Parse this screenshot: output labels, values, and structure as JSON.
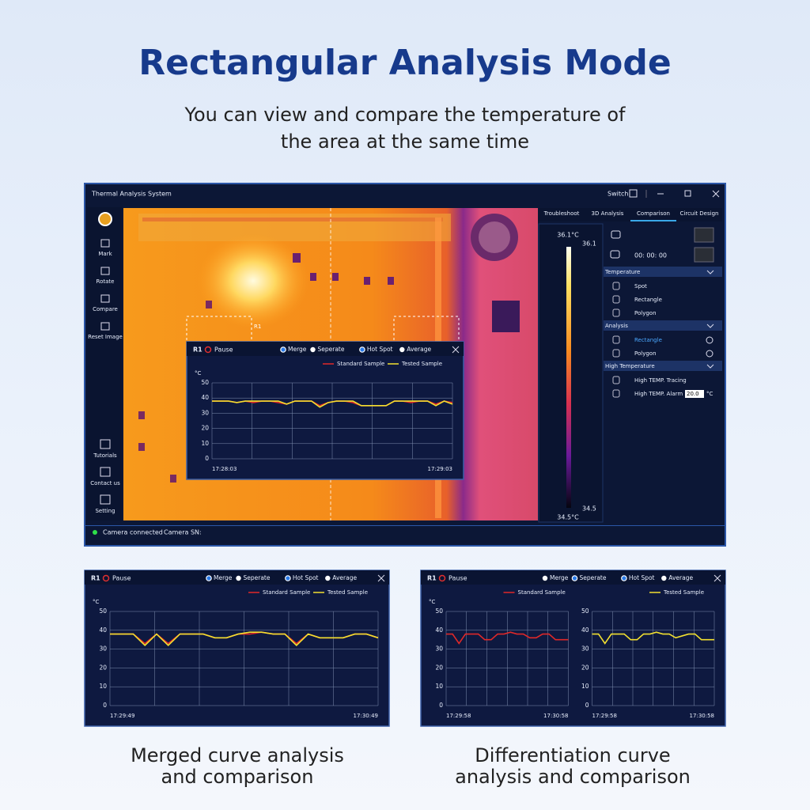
{
  "header": {
    "title": "Rectangular Analysis Mode",
    "subtitle_lines": [
      "You can view and compare the temperature of",
      "the area at the same time"
    ]
  },
  "app": {
    "window_title": "Thermal Analysis System",
    "switch": "Switch",
    "tools_top": [
      "Mark",
      "Rotate",
      "Compare",
      "Reset Image"
    ],
    "tools_bottom": [
      "Tutorials",
      "Contact us",
      "Setting"
    ],
    "roi_label": "R1",
    "tabs": [
      "Troubleshoot",
      "3D Analysis",
      "Comparison",
      "Circuit Design"
    ],
    "active_tab": 2,
    "scale": {
      "max_label": "36.1°C",
      "max_marker": "36.1",
      "min_marker": "34.5",
      "min_label": "34.5°C"
    },
    "timer": "00: 00: 00",
    "sections": [
      {
        "title": "Temperature",
        "items": [
          {
            "label": "Spot"
          },
          {
            "label": "Rectangle"
          },
          {
            "label": "Polygon"
          }
        ]
      },
      {
        "title": "Analysis",
        "items": [
          {
            "label": "Rectangle",
            "active": true
          },
          {
            "label": "Polygon"
          }
        ]
      },
      {
        "title": "High Temperature",
        "items": [
          {
            "label": "High TEMP. Tracing"
          },
          {
            "label": "High TEMP. Alarm",
            "input": "20.0",
            "unit": "°C"
          }
        ]
      }
    ],
    "status": [
      "Camera connected",
      "Camera SN:"
    ]
  },
  "panels": [
    {
      "roi": "R1",
      "pause": "Pause",
      "options": [
        {
          "label": "Merge",
          "selected": true
        },
        {
          "label": "Seperate",
          "selected": false
        },
        {
          "label": "Hot Spot",
          "selected": true
        },
        {
          "label": "Average",
          "selected": false
        }
      ],
      "y_unit": "°C",
      "plots": [
        {
          "ylim": [
            0,
            50
          ],
          "yticks": [
            0,
            10,
            20,
            30,
            40,
            50
          ],
          "xticks": [
            "17:28:03",
            "17:29:03"
          ],
          "series": [
            {
              "name": "Standard Sample",
              "color": "#e02828",
              "values": [
                38,
                38,
                38,
                37,
                38,
                37,
                38,
                38,
                37,
                36,
                38,
                38,
                38,
                35,
                37,
                38,
                38,
                37,
                35,
                35,
                35,
                35,
                38,
                38,
                37,
                38,
                38,
                36,
                38,
                37
              ]
            },
            {
              "name": "Tested Sample",
              "color": "#f2e030",
              "values": [
                38,
                38,
                38,
                37,
                38,
                38,
                38,
                38,
                38,
                36,
                38,
                38,
                38,
                34,
                37,
                38,
                38,
                38,
                35,
                35,
                35,
                35,
                38,
                38,
                38,
                38,
                38,
                35,
                38,
                36
              ]
            }
          ]
        }
      ]
    },
    {
      "roi": "R1",
      "pause": "Pause",
      "options": [
        {
          "label": "Merge",
          "selected": true
        },
        {
          "label": "Seperate",
          "selected": false
        },
        {
          "label": "Hot Spot",
          "selected": true
        },
        {
          "label": "Average",
          "selected": false
        }
      ],
      "y_unit": "°C",
      "plots": [
        {
          "ylim": [
            0,
            50
          ],
          "yticks": [
            0,
            10,
            20,
            30,
            40,
            50
          ],
          "xticks": [
            "17:29:49",
            "17:30:49"
          ],
          "series": [
            {
              "name": "Standard Sample",
              "color": "#e02828",
              "values": [
                38,
                38,
                38,
                33,
                38,
                33,
                38,
                38,
                38,
                36,
                36,
                38,
                38,
                39,
                38,
                38,
                33,
                38,
                36,
                36,
                36,
                38,
                38,
                36
              ]
            },
            {
              "name": "Tested Sample",
              "color": "#f2e030",
              "values": [
                38,
                38,
                38,
                32,
                38,
                32,
                38,
                38,
                38,
                36,
                36,
                38,
                39,
                39,
                38,
                38,
                32,
                38,
                36,
                36,
                36,
                38,
                38,
                36
              ]
            }
          ]
        }
      ]
    },
    {
      "roi": "R1",
      "pause": "Pause",
      "options": [
        {
          "label": "Merge",
          "selected": false
        },
        {
          "label": "Seperate",
          "selected": true
        },
        {
          "label": "Hot Spot",
          "selected": true
        },
        {
          "label": "Average",
          "selected": false
        }
      ],
      "y_unit": "°C",
      "plots": [
        {
          "ylim": [
            0,
            50
          ],
          "yticks": [
            0,
            10,
            20,
            30,
            40,
            50
          ],
          "xticks": [
            "17:29:58",
            "17:30:58"
          ],
          "series": [
            {
              "name": "Standard Sample",
              "color": "#e02828",
              "values": [
                38,
                38,
                33,
                38,
                38,
                38,
                35,
                35,
                38,
                38,
                39,
                38,
                38,
                36,
                36,
                38,
                38,
                35,
                35,
                35
              ]
            }
          ]
        },
        {
          "ylim": [
            0,
            50
          ],
          "yticks": [
            0,
            10,
            20,
            30,
            40,
            50
          ],
          "xticks": [
            "17:29:58",
            "17:30:58"
          ],
          "series": [
            {
              "name": "Tested Sample",
              "color": "#f2e030",
              "values": [
                38,
                38,
                33,
                38,
                38,
                38,
                35,
                35,
                38,
                38,
                39,
                38,
                38,
                36,
                37,
                38,
                38,
                35,
                35,
                35
              ]
            }
          ]
        }
      ]
    }
  ],
  "captions": [
    [
      "Merged curve analysis",
      "and comparison"
    ],
    [
      "Differentiation curve",
      "analysis and comparison"
    ]
  ]
}
